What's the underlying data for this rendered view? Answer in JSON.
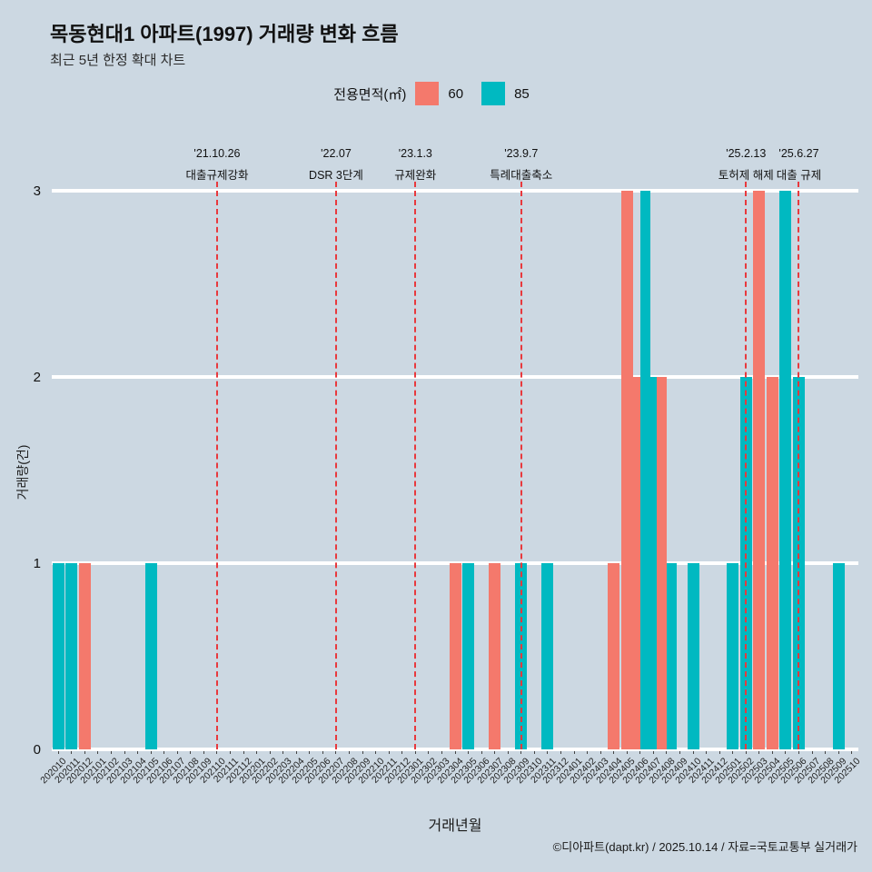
{
  "page": {
    "subtitle": "최근 5년 한정 확대 차트",
    "footer": "©디아파트(dapt.kr) / 2025.10.14 / 자료=국토교통부 실거래가"
  },
  "legend": {
    "label": "전용면적(㎡)"
  },
  "colors": {
    "background": "#ccd8e2",
    "bar_60": "#f4796c",
    "bar_85": "#00b9c1",
    "annotation_line": "#e8393d",
    "gridline": "#ffffff"
  },
  "chart_data": {
    "type": "bar",
    "title": "목동현대1 아파트(1997) 거래량 변화 흐름",
    "subtitle": "최근 5년 한정 확대 차트",
    "xlabel": "거래년월",
    "ylabel": "거래량(건)",
    "ylim": [
      0,
      3
    ],
    "yticks": [
      0,
      1,
      2,
      3
    ],
    "grid": true,
    "legend_position": "top",
    "categories": [
      "202010",
      "202011",
      "202012",
      "202101",
      "202102",
      "202103",
      "202104",
      "202105",
      "202106",
      "202107",
      "202108",
      "202109",
      "202110",
      "202111",
      "202112",
      "202201",
      "202202",
      "202203",
      "202204",
      "202205",
      "202206",
      "202207",
      "202208",
      "202209",
      "202210",
      "202211",
      "202212",
      "202301",
      "202302",
      "202303",
      "202304",
      "202305",
      "202306",
      "202307",
      "202308",
      "202309",
      "202310",
      "202311",
      "202312",
      "202401",
      "202402",
      "202403",
      "202404",
      "202405",
      "202406",
      "202407",
      "202408",
      "202409",
      "202410",
      "202411",
      "202412",
      "202501",
      "202502",
      "202503",
      "202504",
      "202505",
      "202506",
      "202507",
      "202508",
      "202509",
      "202510"
    ],
    "series": [
      {
        "name": "60",
        "color": "#f4796c",
        "values": [
          0,
          0,
          1,
          0,
          0,
          0,
          0,
          0,
          0,
          0,
          0,
          0,
          0,
          0,
          0,
          0,
          0,
          0,
          0,
          0,
          0,
          0,
          0,
          0,
          0,
          0,
          0,
          0,
          0,
          0,
          1,
          0,
          0,
          1,
          0,
          0,
          0,
          0,
          0,
          0,
          0,
          0,
          1,
          3,
          2,
          0,
          2,
          0,
          0,
          0,
          0,
          0,
          0,
          3,
          2,
          0,
          0,
          0,
          0,
          0,
          0
        ]
      },
      {
        "name": "85",
        "color": "#00b9c1",
        "values": [
          1,
          1,
          0,
          0,
          0,
          0,
          0,
          1,
          0,
          0,
          0,
          0,
          0,
          0,
          0,
          0,
          0,
          0,
          0,
          0,
          0,
          0,
          0,
          0,
          0,
          0,
          0,
          0,
          0,
          0,
          0,
          1,
          0,
          0,
          0,
          1,
          0,
          1,
          0,
          0,
          0,
          0,
          0,
          0,
          3,
          2,
          1,
          0,
          1,
          0,
          0,
          1,
          2,
          0,
          0,
          3,
          2,
          0,
          0,
          1,
          0
        ]
      }
    ],
    "annotations": [
      {
        "month": "202110",
        "date": "'21.10.26",
        "label": "대출규제강화"
      },
      {
        "month": "202207",
        "date": "'22.07",
        "label": "DSR 3단계"
      },
      {
        "month": "202301",
        "date": "'23.1.3",
        "label": "규제완화"
      },
      {
        "month": "202309",
        "date": "'23.9.7",
        "label": "특례대출축소"
      },
      {
        "month": "202502",
        "date": "'25.2.13",
        "label": "토허제 해제"
      },
      {
        "month": "202506",
        "date": "'25.6.27",
        "label": "대출 규제"
      }
    ]
  }
}
